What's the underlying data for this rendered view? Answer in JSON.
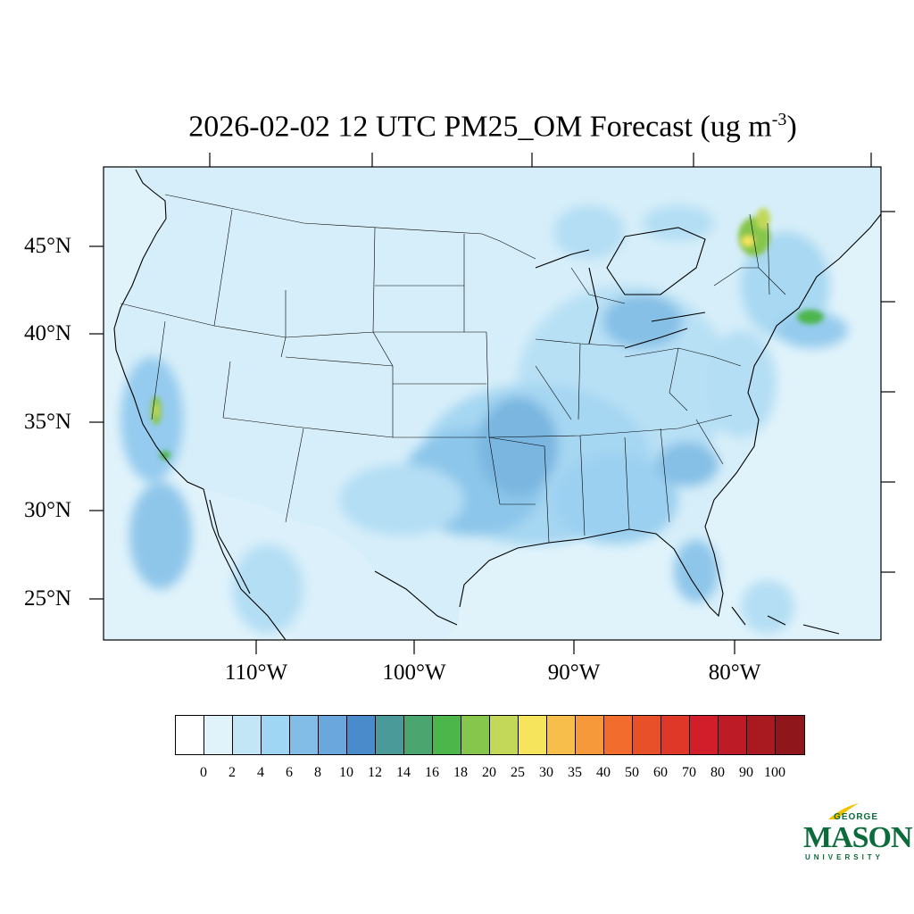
{
  "title": {
    "text": "2026-02-02 12 UTC PM25_OM Forecast (ug m",
    "superscript": "-3",
    "close": ")"
  },
  "map": {
    "projection": "Lambert conformal",
    "region": "Contiguous United States",
    "variable": "PM25_OM",
    "ocean_color": "#e0f3fb",
    "border_color": "#000000",
    "lat_labels": [
      "45°N",
      "40°N",
      "35°N",
      "30°N",
      "25°N"
    ],
    "lon_labels": [
      "110°W",
      "100°W",
      "90°W",
      "80°W"
    ]
  },
  "colorbar": {
    "colors": [
      "#ffffff",
      "#e0f3fb",
      "#c3e6f7",
      "#9fd6f3",
      "#81bde6",
      "#6aa7dc",
      "#4a8bcb",
      "#4a9a9a",
      "#4aa66e",
      "#4cb64a",
      "#86c64c",
      "#c3d859",
      "#f6e45d",
      "#f8be4b",
      "#f6993b",
      "#f26d2d",
      "#e8502a",
      "#df3728",
      "#d21e2b",
      "#bd1b25",
      "#a81a1f",
      "#8f171b"
    ],
    "tick_labels": [
      "0",
      "2",
      "4",
      "6",
      "8",
      "10",
      "12",
      "14",
      "16",
      "18",
      "20",
      "25",
      "30",
      "35",
      "40",
      "50",
      "60",
      "70",
      "80",
      "90",
      "100"
    ]
  },
  "logo": {
    "line1": "GEORGE",
    "line2": "MASON",
    "line3": "UNIVERSITY"
  }
}
